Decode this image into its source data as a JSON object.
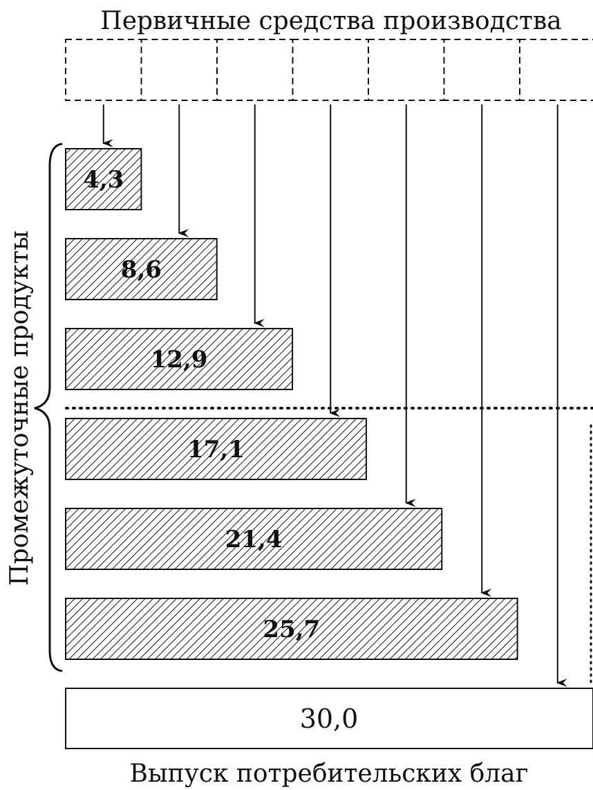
{
  "title_top": "Первичные средства производства",
  "title_bottom": "Выпуск потребительских благ",
  "side_label": "Промежуточные продукты",
  "chart_data": {
    "type": "bar",
    "categories": [
      "4,3",
      "8,6",
      "12,9",
      "17,1",
      "21,4",
      "25,7"
    ],
    "values": [
      4.3,
      8.6,
      12.9,
      17.1,
      21.4,
      25.7
    ],
    "final": {
      "label": "30,0",
      "value": 30.0
    },
    "xlim": [
      0,
      30
    ],
    "primary_cells": 7
  }
}
